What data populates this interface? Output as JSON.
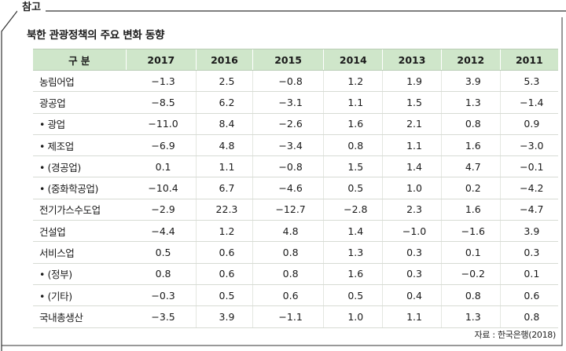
{
  "tag": "참고",
  "title": "북한 관광정책의 주요 변화 동향",
  "table": {
    "header": [
      "구 분",
      "2017",
      "2016",
      "2015",
      "2014",
      "2013",
      "2012",
      "2011"
    ],
    "rows": [
      {
        "label": "농림어업",
        "values": [
          "−1.3",
          "2.5",
          "−0.8",
          "1.2",
          "1.9",
          "3.9",
          "5.3"
        ]
      },
      {
        "label": "광공업",
        "values": [
          "−8.5",
          "6.2",
          "−3.1",
          "1.1",
          "1.5",
          "1.3",
          "−1.4"
        ]
      },
      {
        "label": " • 광업",
        "values": [
          "−11.0",
          "8.4",
          "−2.6",
          "1.6",
          "2.1",
          "0.8",
          "0.9"
        ]
      },
      {
        "label": " • 제조업",
        "values": [
          "−6.9",
          "4.8",
          "−3.4",
          "0.8",
          "1.1",
          "1.6",
          "−3.0"
        ]
      },
      {
        "label": " • (경공업)",
        "values": [
          "0.1",
          "1.1",
          "−0.8",
          "1.5",
          "1.4",
          "4.7",
          "−0.1"
        ]
      },
      {
        "label": " • (중화학공업)",
        "values": [
          "−10.4",
          "6.7",
          "−4.6",
          "0.5",
          "1.0",
          "0.2",
          "−4.2"
        ]
      },
      {
        "label": "전기가스수도업",
        "values": [
          "−2.9",
          "22.3",
          "−12.7",
          "−2.8",
          "2.3",
          "1.6",
          "−4.7"
        ]
      },
      {
        "label": "건설업",
        "values": [
          "−4.4",
          "1.2",
          "4.8",
          "1.4",
          "−1.0",
          "−1.6",
          "3.9"
        ]
      },
      {
        "label": "서비스업",
        "values": [
          "0.5",
          "0.6",
          "0.8",
          "1.3",
          "0.3",
          "0.1",
          "0.3"
        ]
      },
      {
        "label": " • (정부)",
        "values": [
          "0.8",
          "0.6",
          "0.8",
          "1.6",
          "0.3",
          "−0.2",
          "0.1"
        ]
      },
      {
        "label": " • (기타)",
        "values": [
          "−0.3",
          "0.5",
          "0.6",
          "0.5",
          "0.4",
          "0.8",
          "0.6"
        ]
      },
      {
        "label": "국내총생산",
        "values": [
          "−3.5",
          "3.9",
          "−1.1",
          "1.0",
          "1.1",
          "1.3",
          "0.8"
        ]
      }
    ]
  },
  "source": "자료 : 한국은행(2018)",
  "colors": {
    "header_bg": "#cfe6ca",
    "frame": "#333333",
    "rule": "#d7dbd4"
  }
}
